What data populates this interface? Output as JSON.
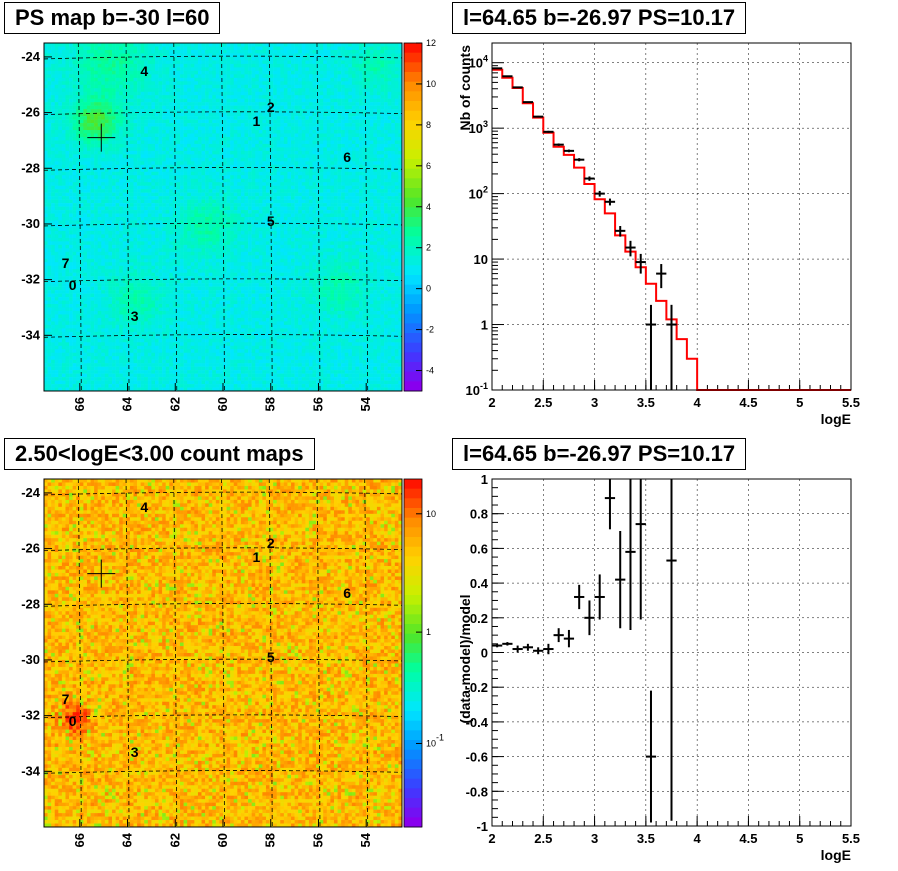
{
  "titles": {
    "ps_map": "PS map b=-30 l=60",
    "spectrum": "l=64.65 b=-26.97 PS=10.17",
    "count_map": "2.50<logE<3.00 count maps",
    "residual": "l=64.65 b=-26.97 PS=10.17"
  },
  "chart_data": [
    {
      "type": "heatmap",
      "title": "PS map b=-30 l=60",
      "x_ticks": [
        "66",
        "64",
        "62",
        "60",
        "58",
        "56",
        "54"
      ],
      "y_ticks": [
        "-24",
        "-26",
        "-28",
        "-30",
        "-32",
        "-34"
      ],
      "xlim": [
        67.5,
        52.5
      ],
      "ylim": [
        -36,
        -23.5
      ],
      "colorbar_ticks": [
        "12",
        "10",
        "8",
        "6",
        "4",
        "2",
        "0",
        "-2",
        "-4"
      ],
      "colorbar_range": [
        -5,
        12
      ],
      "sources": [
        {
          "label": "4",
          "l": 63.3,
          "b": -24.5
        },
        {
          "label": "2",
          "l": 58,
          "b": -25.8
        },
        {
          "label": "1",
          "l": 58.6,
          "b": -26.3
        },
        {
          "label": "6",
          "l": 54.8,
          "b": -27.6
        },
        {
          "label": "5",
          "l": 58,
          "b": -29.9
        },
        {
          "label": "7",
          "l": 66.6,
          "b": -31.4
        },
        {
          "label": "0",
          "l": 66.3,
          "b": -32.2
        },
        {
          "label": "3",
          "l": 63.7,
          "b": -33.3
        }
      ],
      "marker": {
        "l": 65.1,
        "b": -26.9
      }
    },
    {
      "type": "line",
      "title": "l=64.65 b=-26.97 PS=10.17",
      "xlabel": "logE",
      "ylabel": "Nb of counts",
      "xlim": [
        2,
        5.5
      ],
      "ylim": [
        0.1,
        20000
      ],
      "log_y": true,
      "x_ticks": [
        "2",
        "2.5",
        "3",
        "3.5",
        "4",
        "4.5",
        "5",
        "5.5"
      ],
      "y_ticks": [
        "10^{-1}",
        "1",
        "10",
        "10^{2}",
        "10^{3}",
        "10^{4}"
      ],
      "grid": true,
      "data_points": [
        {
          "x": 2.05,
          "y": 8200,
          "err_lo": 90,
          "err_hi": 90
        },
        {
          "x": 2.15,
          "y": 6200,
          "err_lo": 80,
          "err_hi": 80
        },
        {
          "x": 2.25,
          "y": 4200,
          "err_lo": 65,
          "err_hi": 65
        },
        {
          "x": 2.35,
          "y": 2500,
          "err_lo": 50,
          "err_hi": 50
        },
        {
          "x": 2.45,
          "y": 1500,
          "err_lo": 39,
          "err_hi": 39
        },
        {
          "x": 2.55,
          "y": 880,
          "err_lo": 30,
          "err_hi": 30
        },
        {
          "x": 2.65,
          "y": 560,
          "err_lo": 24,
          "err_hi": 24
        },
        {
          "x": 2.75,
          "y": 450,
          "err_lo": 21,
          "err_hi": 21
        },
        {
          "x": 2.85,
          "y": 330,
          "err_lo": 18,
          "err_hi": 18
        },
        {
          "x": 2.95,
          "y": 170,
          "err_lo": 13,
          "err_hi": 13
        },
        {
          "x": 3.05,
          "y": 100,
          "err_lo": 10,
          "err_hi": 10
        },
        {
          "x": 3.15,
          "y": 75,
          "err_lo": 9,
          "err_hi": 9
        },
        {
          "x": 3.25,
          "y": 27,
          "err_lo": 5,
          "err_hi": 5
        },
        {
          "x": 3.35,
          "y": 15,
          "err_lo": 4,
          "err_hi": 4
        },
        {
          "x": 3.45,
          "y": 9,
          "err_lo": 3,
          "err_hi": 3
        },
        {
          "x": 3.55,
          "y": 1,
          "err_lo": 0.9,
          "err_hi": 1
        },
        {
          "x": 3.65,
          "y": 6,
          "err_lo": 2.4,
          "err_hi": 2.4
        },
        {
          "x": 3.75,
          "y": 1,
          "err_lo": 0.9,
          "err_hi": 1
        }
      ],
      "model": {
        "name": "model",
        "color": "#ff0000",
        "edges": [
          2.0,
          2.1,
          2.2,
          2.3,
          2.4,
          2.5,
          2.6,
          2.7,
          2.8,
          2.9,
          3.0,
          3.1,
          3.2,
          3.3,
          3.4,
          3.5,
          3.6,
          3.7,
          3.8,
          3.9,
          4.0,
          5.5
        ],
        "values": [
          7800,
          5900,
          4100,
          2400,
          1450,
          850,
          520,
          390,
          250,
          140,
          82,
          50,
          23,
          13,
          7.5,
          4.2,
          2.3,
          1.2,
          0.6,
          0.3,
          0.1
        ]
      }
    },
    {
      "type": "heatmap",
      "title": "2.50<logE<3.00 count maps",
      "x_ticks": [
        "66",
        "64",
        "62",
        "60",
        "58",
        "56",
        "54"
      ],
      "y_ticks": [
        "-24",
        "-26",
        "-28",
        "-30",
        "-32",
        "-34"
      ],
      "xlim": [
        67.5,
        52.5
      ],
      "ylim": [
        -36,
        -23.5
      ],
      "colorbar_ticks": [
        "10",
        "1",
        "10^{-1}"
      ],
      "colorbar_log": true,
      "sources": [
        {
          "label": "4",
          "l": 63.3,
          "b": -24.5
        },
        {
          "label": "2",
          "l": 58,
          "b": -25.8
        },
        {
          "label": "1",
          "l": 58.6,
          "b": -26.3
        },
        {
          "label": "6",
          "l": 54.8,
          "b": -27.6
        },
        {
          "label": "5",
          "l": 58,
          "b": -29.9
        },
        {
          "label": "7",
          "l": 66.6,
          "b": -31.4
        },
        {
          "label": "0",
          "l": 66.3,
          "b": -32.2
        },
        {
          "label": "3",
          "l": 63.7,
          "b": -33.3
        }
      ],
      "marker": {
        "l": 65.1,
        "b": -26.9
      }
    },
    {
      "type": "scatter",
      "title": "l=64.65 b=-26.97 PS=10.17",
      "xlabel": "logE",
      "ylabel": "(data-model)/model",
      "xlim": [
        2,
        5.5
      ],
      "ylim": [
        -1,
        1
      ],
      "x_ticks": [
        "2",
        "2.5",
        "3",
        "3.5",
        "4",
        "4.5",
        "5",
        "5.5"
      ],
      "y_ticks": [
        "-1",
        "-0.8",
        "-0.6",
        "-0.4",
        "-0.2",
        "0",
        "0.2",
        "0.4",
        "0.6",
        "0.8",
        "1"
      ],
      "grid": true,
      "points": [
        {
          "x": 2.05,
          "y": 0.04,
          "err": 0.01
        },
        {
          "x": 2.15,
          "y": 0.05,
          "err": 0.01
        },
        {
          "x": 2.25,
          "y": 0.02,
          "err": 0.02
        },
        {
          "x": 2.35,
          "y": 0.03,
          "err": 0.02
        },
        {
          "x": 2.45,
          "y": 0.01,
          "err": 0.02
        },
        {
          "x": 2.55,
          "y": 0.02,
          "err": 0.03
        },
        {
          "x": 2.65,
          "y": 0.1,
          "err": 0.04
        },
        {
          "x": 2.75,
          "y": 0.08,
          "err": 0.05
        },
        {
          "x": 2.85,
          "y": 0.32,
          "err": 0.07
        },
        {
          "x": 2.95,
          "y": 0.2,
          "err": 0.1
        },
        {
          "x": 3.05,
          "y": 0.32,
          "err": 0.13
        },
        {
          "x": 3.15,
          "y": 0.89,
          "err": 0.18
        },
        {
          "x": 3.25,
          "y": 0.42,
          "err": 0.28
        },
        {
          "x": 3.35,
          "y": 0.58,
          "err": 0.45
        },
        {
          "x": 3.45,
          "y": 0.74,
          "err": 0.55
        },
        {
          "x": 3.55,
          "y": -0.6,
          "err": 0.38
        },
        {
          "x": 3.75,
          "y": 0.53,
          "err": 1.5
        }
      ]
    }
  ]
}
